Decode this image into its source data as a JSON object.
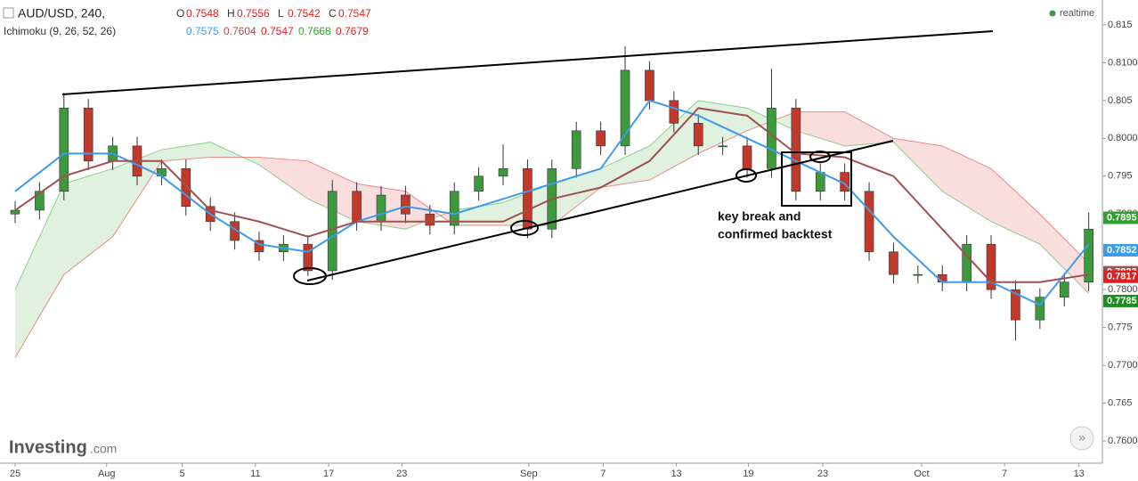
{
  "chart_data": {
    "type": "candlestick",
    "header": {
      "symbol": "AUD/USD, 240,",
      "fields": [
        {
          "label": "O",
          "value": 0.7548
        },
        {
          "label": "H",
          "value": 0.7556
        },
        {
          "label": "L",
          "value": 0.7542
        },
        {
          "label": "C",
          "value": 0.7547
        }
      ]
    },
    "indicator": {
      "name": "Ichimoku (9, 26, 52, 26)",
      "values": [
        0.7575,
        0.7604,
        0.7547,
        0.7668,
        0.7679
      ],
      "colors": [
        "#3d9be9",
        "#a0504f",
        "#e02020",
        "#2ea12e",
        "#e02020"
      ]
    },
    "status": "realtime",
    "annotation": [
      "key break and",
      "confirmed backtest"
    ],
    "brand": [
      "Investing",
      ".com"
    ],
    "up_color": "#3c9a3c",
    "down_color": "#c0392b",
    "x": [
      0,
      2,
      4,
      6,
      8,
      10,
      12,
      14,
      16,
      18,
      20,
      22,
      24,
      26,
      28,
      30,
      32,
      34,
      36,
      38,
      40,
      42,
      44,
      46,
      48,
      50,
      52,
      54,
      56,
      58,
      60,
      62,
      64,
      66,
      68,
      70,
      72,
      74,
      76,
      78,
      80,
      82,
      84,
      86,
      88
    ],
    "open": [
      0.79,
      0.7905,
      0.793,
      0.804,
      0.797,
      0.799,
      0.795,
      0.796,
      0.791,
      0.789,
      0.7865,
      0.785,
      0.786,
      0.7825,
      0.793,
      0.789,
      0.7925,
      0.79,
      0.7885,
      0.793,
      0.795,
      0.796,
      0.788,
      0.796,
      0.801,
      0.799,
      0.809,
      0.805,
      0.802,
      0.799,
      0.799,
      0.796,
      0.804,
      0.793,
      0.7955,
      0.793,
      0.785,
      0.782,
      0.782,
      0.781,
      0.786,
      0.78,
      0.776,
      0.779,
      0.781
    ],
    "high": [
      0.7917,
      0.7942,
      0.806,
      0.8052,
      0.8002,
      0.8002,
      0.7972,
      0.7972,
      0.7922,
      0.7902,
      0.7877,
      0.7872,
      0.7872,
      0.7945,
      0.7942,
      0.7937,
      0.7937,
      0.7912,
      0.7942,
      0.7962,
      0.7992,
      0.7972,
      0.7972,
      0.8022,
      0.8022,
      0.8122,
      0.8102,
      0.8062,
      0.8032,
      0.8002,
      0.8002,
      0.8092,
      0.8052,
      0.7967,
      0.7967,
      0.7942,
      0.7862,
      0.7832,
      0.7832,
      0.7872,
      0.7872,
      0.7812,
      0.7802,
      0.7822,
      0.7902
    ],
    "low": [
      0.7888,
      0.7893,
      0.7918,
      0.7958,
      0.7958,
      0.7938,
      0.7938,
      0.7898,
      0.7878,
      0.7853,
      0.7838,
      0.7838,
      0.7818,
      0.7813,
      0.7878,
      0.7878,
      0.7888,
      0.7873,
      0.7873,
      0.7918,
      0.7938,
      0.7868,
      0.7868,
      0.7948,
      0.7978,
      0.7978,
      0.8038,
      0.8008,
      0.7978,
      0.7978,
      0.7948,
      0.7948,
      0.7918,
      0.7918,
      0.7918,
      0.7838,
      0.7808,
      0.7808,
      0.7798,
      0.7798,
      0.7788,
      0.7733,
      0.7748,
      0.7778,
      0.7798
    ],
    "close": [
      0.7905,
      0.793,
      0.804,
      0.797,
      0.799,
      0.795,
      0.796,
      0.791,
      0.789,
      0.7865,
      0.785,
      0.786,
      0.7825,
      0.793,
      0.789,
      0.7925,
      0.79,
      0.7885,
      0.793,
      0.795,
      0.796,
      0.788,
      0.796,
      0.801,
      0.799,
      0.809,
      0.805,
      0.802,
      0.799,
      0.799,
      0.796,
      0.804,
      0.793,
      0.7955,
      0.793,
      0.785,
      0.782,
      0.782,
      0.781,
      0.786,
      0.78,
      0.776,
      0.779,
      0.781,
      0.788
    ],
    "ichimoku_x": [
      0,
      4,
      8,
      12,
      16,
      20,
      24,
      28,
      32,
      36,
      40,
      44,
      48,
      52,
      56,
      60,
      64,
      68,
      72,
      76,
      80,
      84,
      88
    ],
    "lines": [
      {
        "color": "#3d9be9",
        "values": [
          0.793,
          0.798,
          0.798,
          0.795,
          0.79,
          0.786,
          0.785,
          0.789,
          0.791,
          0.79,
          0.792,
          0.794,
          0.796,
          0.805,
          0.803,
          0.8,
          0.797,
          0.794,
          0.787,
          0.781,
          0.781,
          0.778,
          0.786
        ]
      },
      {
        "color": "#a0504f",
        "values": [
          0.7905,
          0.795,
          0.797,
          0.797,
          0.7905,
          0.789,
          0.787,
          0.789,
          0.789,
          0.789,
          0.789,
          0.792,
          0.7935,
          0.797,
          0.804,
          0.803,
          0.798,
          0.7975,
          0.795,
          0.788,
          0.781,
          0.781,
          0.782
        ]
      }
    ],
    "cloud": {
      "up_color": "#2ea12e",
      "down_color": "#e02020",
      "span_a": [
        0.78,
        0.794,
        0.796,
        0.7985,
        0.7995,
        0.7965,
        0.792,
        0.789,
        0.788,
        0.7905,
        0.7915,
        0.794,
        0.796,
        0.799,
        0.805,
        0.804,
        0.801,
        0.799,
        0.7995,
        0.793,
        0.789,
        0.786,
        0.7795
      ],
      "span_b": [
        0.771,
        0.782,
        0.787,
        0.797,
        0.7975,
        0.7975,
        0.797,
        0.794,
        0.793,
        0.7885,
        0.7885,
        0.7885,
        0.7935,
        0.7945,
        0.798,
        0.801,
        0.8035,
        0.8035,
        0.8,
        0.799,
        0.796,
        0.79,
        0.7835
      ]
    },
    "price_labels": [
      {
        "value": 0.7895,
        "color": "#2ea12e"
      },
      {
        "value": 0.7852,
        "color": "#3d9be9"
      },
      {
        "value": 0.7823,
        "color": "#a0504f"
      },
      {
        "value": 0.7817,
        "color": "#e02020"
      },
      {
        "value": 0.7785,
        "color": "#1a8f1a"
      }
    ],
    "xlim": [
      -1.24,
      89.12
    ],
    "xticks": [
      {
        "value": 0,
        "label": "25"
      },
      {
        "value": 7.5,
        "label": "Aug"
      },
      {
        "value": 13.7,
        "label": "5"
      },
      {
        "value": 19.7,
        "label": "11"
      },
      {
        "value": 25.7,
        "label": "17"
      },
      {
        "value": 31.7,
        "label": "23"
      },
      {
        "value": 42.1,
        "label": "Sep"
      },
      {
        "value": 48.2,
        "label": "7"
      },
      {
        "value": 54.2,
        "label": "13"
      },
      {
        "value": 60.1,
        "label": "19"
      },
      {
        "value": 66.2,
        "label": "23"
      },
      {
        "value": 74.3,
        "label": "Oct"
      },
      {
        "value": 81.1,
        "label": "7"
      },
      {
        "value": 87.2,
        "label": "13"
      }
    ],
    "ylim": [
      0.75706,
      0.81829
    ],
    "yticks": [
      {
        "value": 0.76,
        "label": "0.7600"
      },
      0.765,
      {
        "value": 0.77,
        "label": "0.7700"
      },
      0.775,
      {
        "value": 0.78,
        "label": "0.7800"
      },
      0.785,
      {
        "value": 0.79,
        "label": "0.7900"
      },
      0.795,
      {
        "value": 0.8,
        "label": "0.8000"
      },
      0.805,
      {
        "value": 0.81,
        "label": "0.8100"
      },
      0.815
    ]
  }
}
